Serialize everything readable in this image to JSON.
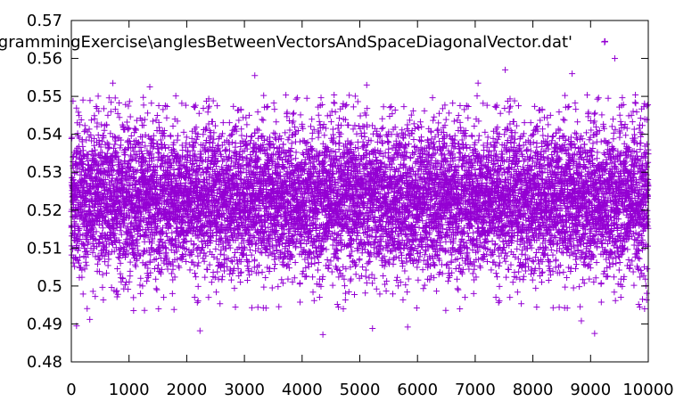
{
  "chart_data": {
    "type": "scatter",
    "title": "",
    "legend": {
      "text": "'C:\\...\\ProgrammingExercise\\anglesBetweenVectorsAndSpaceDiagonalVector.dat'",
      "visible_text": "rogrammingExercise\\anglesBetweenVectorsAndSpaceDiagonalVector.dat'",
      "placement": "top-right"
    },
    "xlabel": "",
    "ylabel": "",
    "xlim": [
      0,
      10000
    ],
    "ylim": [
      0.48,
      0.57
    ],
    "x_ticks": [
      0,
      1000,
      2000,
      3000,
      4000,
      5000,
      6000,
      7000,
      8000,
      9000,
      10000
    ],
    "y_ticks": [
      0.48,
      0.49,
      0.5,
      0.51,
      0.52,
      0.53,
      0.54,
      0.55,
      0.56,
      0.57
    ],
    "x_tick_labels": [
      "0",
      "1000",
      "2000",
      "3000",
      "4000",
      "5000",
      "6000",
      "7000",
      "8000",
      "9000",
      "10000"
    ],
    "y_tick_labels": [
      "0.48",
      "0.49",
      "0.5",
      "0.51",
      "0.52",
      "0.53",
      "0.54",
      "0.55",
      "0.56",
      "0.57"
    ],
    "marker": "plus",
    "color": "#9400d3",
    "grid": false,
    "series": [
      {
        "name": "",
        "distribution": {
          "n_points": 10000,
          "x_start": 1,
          "x_end": 10000,
          "y_mean": 0.523,
          "y_std": 0.0098
        },
        "points": [
          {
            "x": 90,
            "y": 0.4895
          },
          {
            "x": 320,
            "y": 0.4912
          },
          {
            "x": 720,
            "y": 0.5535
          },
          {
            "x": 1360,
            "y": 0.5525
          },
          {
            "x": 1780,
            "y": 0.4938
          },
          {
            "x": 2230,
            "y": 0.4882
          },
          {
            "x": 3180,
            "y": 0.5555
          },
          {
            "x": 4360,
            "y": 0.4872
          },
          {
            "x": 5120,
            "y": 0.553
          },
          {
            "x": 5220,
            "y": 0.4888
          },
          {
            "x": 5830,
            "y": 0.4892
          },
          {
            "x": 7050,
            "y": 0.5535
          },
          {
            "x": 7520,
            "y": 0.557
          },
          {
            "x": 8680,
            "y": 0.556
          },
          {
            "x": 8840,
            "y": 0.4908
          },
          {
            "x": 9070,
            "y": 0.4875
          },
          {
            "x": 9250,
            "y": 0.5645
          },
          {
            "x": 9420,
            "y": 0.56
          },
          {
            "x": 9900,
            "y": 0.4965
          }
        ]
      }
    ]
  }
}
